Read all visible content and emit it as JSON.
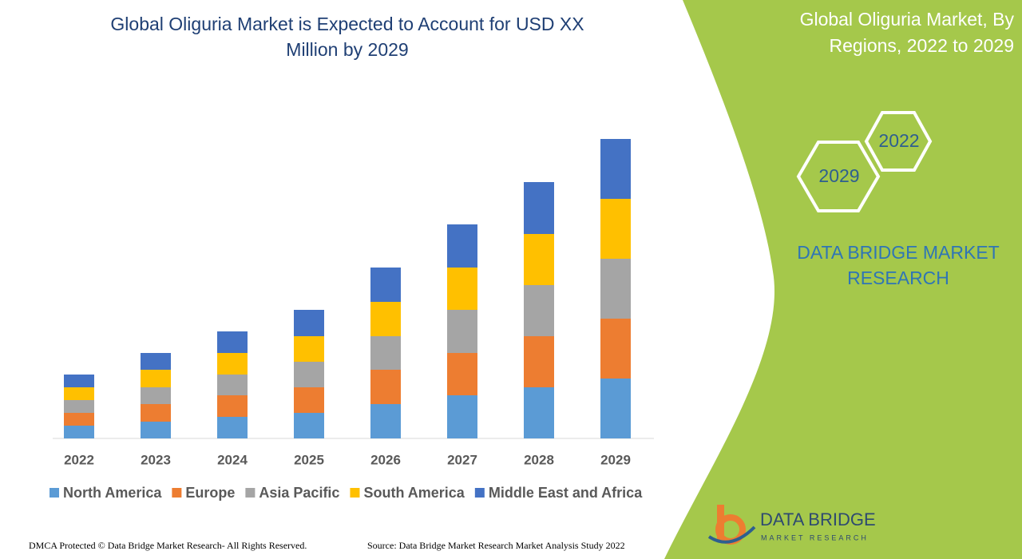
{
  "chart_data": {
    "type": "bar",
    "stacked": true,
    "title": "Global Oliguria Market is Expected to Account for USD XX Million by 2029",
    "categories": [
      "2022",
      "2023",
      "2024",
      "2025",
      "2026",
      "2027",
      "2028",
      "2029"
    ],
    "series": [
      {
        "name": "North America",
        "color": "#5b9bd5",
        "values": [
          16,
          21,
          27,
          32,
          43,
          54,
          64,
          75
        ]
      },
      {
        "name": "Europe",
        "color": "#ed7d31",
        "values": [
          16,
          22,
          27,
          32,
          43,
          53,
          64,
          75
        ]
      },
      {
        "name": "Asia Pacific",
        "color": "#a5a5a5",
        "values": [
          16,
          21,
          26,
          32,
          42,
          54,
          64,
          75
        ]
      },
      {
        "name": "South America",
        "color": "#ffc000",
        "values": [
          16,
          22,
          27,
          32,
          43,
          53,
          64,
          75
        ]
      },
      {
        "name": "Middle East and Africa",
        "color": "#4472c4",
        "values": [
          16,
          21,
          27,
          33,
          43,
          54,
          65,
          75
        ]
      }
    ],
    "legend": "bottom"
  },
  "panel": {
    "title": "Global Oliguria Market, By Regions, 2022 to 2029",
    "hex_labels": [
      "2022",
      "2029"
    ],
    "brand": "DATA BRIDGE MARKET RESEARCH"
  },
  "logo": {
    "name": "DATA BRIDGE",
    "tagline": "MARKET RESEARCH"
  },
  "footer": {
    "left": "DMCA Protected © Data Bridge Market Research- All Rights Reserved.",
    "right": "Source: Data Bridge Market Research Market Analysis Study 2022"
  }
}
